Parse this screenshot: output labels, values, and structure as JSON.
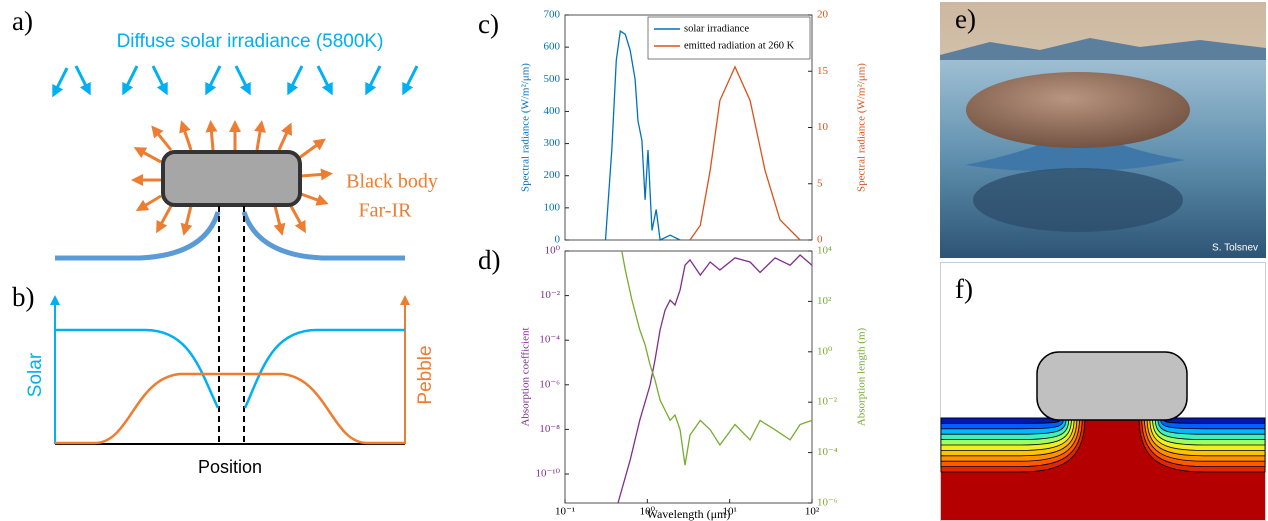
{
  "panels": {
    "a": {
      "label": "a)",
      "incoming": "Diffuse solar irradiance (5800K)",
      "emission": "Black body",
      "emission_band": "Far-IR"
    },
    "b": {
      "label": "b)",
      "left_axis": "Solar",
      "right_axis": "Pebble",
      "x_axis": "Position"
    },
    "e": {
      "label": "e)",
      "credit": "S. Tolsnev"
    },
    "f": {
      "label": "f)"
    }
  },
  "chart_data": [
    {
      "type": "line",
      "label": "c)",
      "ylabel": "Spectral radiance (W/m²/μm)",
      "y2label": "Spectral radiance (W/m²/μm)",
      "xscale": "log",
      "xlim": [
        0.1,
        100
      ],
      "ylim": [
        0,
        700
      ],
      "yticks": [
        0,
        100,
        200,
        300,
        400,
        500,
        600,
        700
      ],
      "y2lim": [
        0,
        20
      ],
      "y2ticks": [
        0,
        5,
        10,
        15,
        20
      ],
      "legend": "upper right",
      "series": [
        {
          "name": "solar irradiance",
          "color": "#0072bd",
          "x": [
            0.31,
            0.37,
            0.42,
            0.47,
            0.54,
            0.62,
            0.71,
            0.77,
            0.86,
            0.94,
            1.02,
            1.14,
            1.28,
            1.43,
            1.89,
            2.5
          ],
          "values": [
            0,
            280,
            560,
            650,
            640,
            590,
            500,
            370,
            310,
            125,
            280,
            30,
            95,
            0,
            15,
            0
          ]
        },
        {
          "name": "emitted radiation at 260 K",
          "color": "#d95319",
          "axis": "y2",
          "x": [
            3.3,
            4.4,
            5.8,
            7.6,
            11.6,
            17.7,
            26.9,
            40.9,
            71.6
          ],
          "values": [
            0,
            1.3,
            6.2,
            12.4,
            15.4,
            12.4,
            6.2,
            1.8,
            0
          ]
        }
      ]
    },
    {
      "type": "line",
      "label": "d)",
      "xlabel": "Wavelength (μm)",
      "ylabel": "Absorption coefficient",
      "y2label": "Absorption length (m)",
      "xscale": "log",
      "yscale": "log",
      "y2scale": "log",
      "xlim": [
        0.1,
        100
      ],
      "xticks": [
        {
          "value": 0.1,
          "label": "10⁻¹"
        },
        {
          "value": 1,
          "label": "10⁰"
        },
        {
          "value": 10,
          "label": "10¹"
        },
        {
          "value": 100,
          "label": "10²"
        }
      ],
      "ylim": [
        5e-12,
        1
      ],
      "yticks": [
        {
          "value": 1,
          "label": "10⁰"
        },
        {
          "value": 0.01,
          "label": "10⁻²"
        },
        {
          "value": 0.0001,
          "label": "10⁻⁴"
        },
        {
          "value": 1e-06,
          "label": "10⁻⁶"
        },
        {
          "value": 1e-08,
          "label": "10⁻⁸"
        },
        {
          "value": 1e-10,
          "label": "10⁻¹⁰"
        }
      ],
      "y2lim": [
        1e-06,
        10000
      ],
      "y2ticks": [
        {
          "value": 10000,
          "label": "10⁴"
        },
        {
          "value": 100,
          "label": "10²"
        },
        {
          "value": 1,
          "label": "10⁰"
        },
        {
          "value": 0.01,
          "label": "10⁻²"
        },
        {
          "value": 0.0001,
          "label": "10⁻⁴"
        },
        {
          "value": 1e-06,
          "label": "10⁻⁶"
        }
      ],
      "series": [
        {
          "color": "#7e2f8e",
          "x": [
            0.44,
            0.62,
            0.81,
            1.08,
            1.24,
            1.43,
            1.64,
            1.89,
            2.17,
            2.5,
            2.87,
            3.3,
            4.4,
            5.8,
            7.6,
            11.6,
            17.7,
            23.4,
            35.6,
            54.2,
            71.6,
            100
          ],
          "values": [
            5e-12,
            4.3e-10,
            2.6e-08,
            9.8e-07,
            1.3e-05,
            0.00029,
            0.0022,
            0.0063,
            0.0038,
            0.018,
            0.23,
            0.4,
            0.083,
            0.32,
            0.14,
            0.49,
            0.32,
            0.11,
            0.49,
            0.23,
            0.66,
            0.23
          ]
        },
        {
          "color": "#77ac30",
          "axis": "y2",
          "x": [
            0.49,
            0.54,
            0.65,
            0.81,
            0.94,
            1.08,
            1.24,
            1.43,
            1.64,
            1.89,
            2.17,
            2.5,
            2.87,
            3.3,
            4.4,
            5.8,
            7.6,
            11.6,
            17.7,
            23.4,
            35.6,
            54.2,
            71.6,
            100
          ],
          "values": [
            10000,
            1780,
            115,
            7.4,
            1.9,
            0.3,
            0.076,
            0.012,
            0.0049,
            0.0019,
            0.0031,
            0.0008,
            3.2e-05,
            0.0005,
            0.0019,
            0.0008,
            0.0002,
            0.0013,
            0.00032,
            0.0019,
            0.0008,
            0.00032,
            0.0013,
            0.0019
          ]
        }
      ]
    }
  ]
}
